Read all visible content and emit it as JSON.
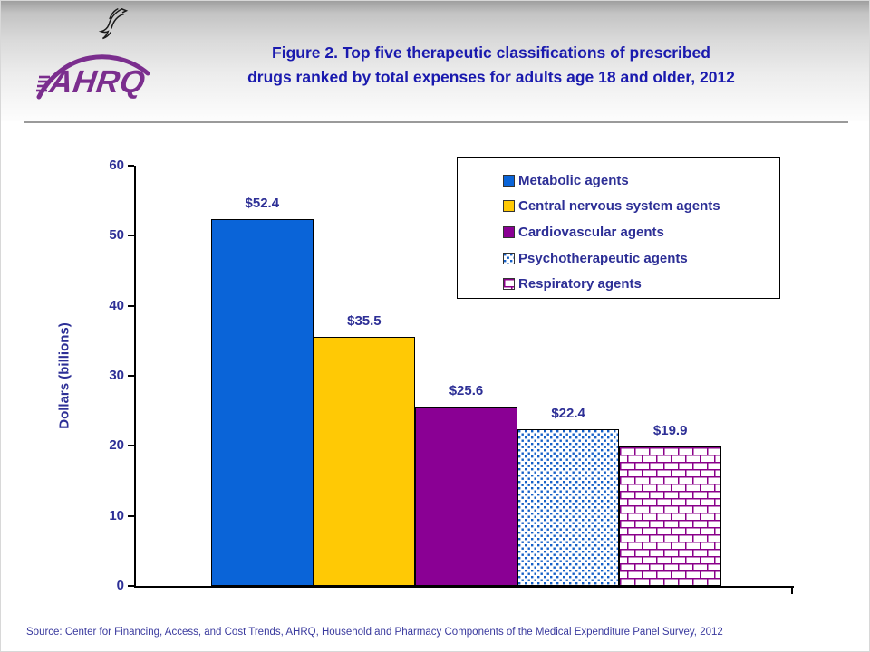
{
  "header": {
    "logo_text": "AHRQ",
    "title_line1": "Figure 2. Top five therapeutic classifications of prescribed",
    "title_line2": "drugs ranked by total expenses for adults age 18 and older, 2012"
  },
  "chart_data": {
    "type": "bar",
    "title": "Figure 2. Top five therapeutic classifications of prescribed drugs ranked by total expenses for adults age 18 and older, 2012",
    "xlabel": "",
    "ylabel": "Dollars (billions)",
    "ylim": [
      0,
      60
    ],
    "yticks": [
      0,
      10,
      20,
      30,
      40,
      50,
      60
    ],
    "grid": false,
    "legend_position": "top-right",
    "categories": [
      "Metabolic agents",
      "Central nervous system agents",
      "Cardiovascular agents",
      "Psychotherapeutic agents",
      "Respiratory agents"
    ],
    "values": [
      52.4,
      35.5,
      25.6,
      22.4,
      19.9
    ],
    "value_labels": [
      "$52.4",
      "$35.5",
      "$25.6",
      "$22.4",
      "$19.9"
    ],
    "bar_styles": [
      {
        "type": "solid",
        "color": "#0A64D8"
      },
      {
        "type": "solid",
        "color": "#FFC905"
      },
      {
        "type": "solid",
        "color": "#8A0094"
      },
      {
        "type": "pattern-dots",
        "fg": "#1560C8",
        "bg": "#FFFFFF"
      },
      {
        "type": "pattern-brick",
        "fg": "#8A008A",
        "bg": "#FFFFFF"
      }
    ]
  },
  "source": "Source: Center for Financing, Access, and Cost Trends, AHRQ, Household and Pharmacy Components of the Medical Expenditure Panel Survey, 2012",
  "colors": {
    "title_text": "#1A1AAE",
    "label_text": "#2D2F96",
    "logo_purple": "#7B2E8E",
    "axis": "#000000"
  }
}
